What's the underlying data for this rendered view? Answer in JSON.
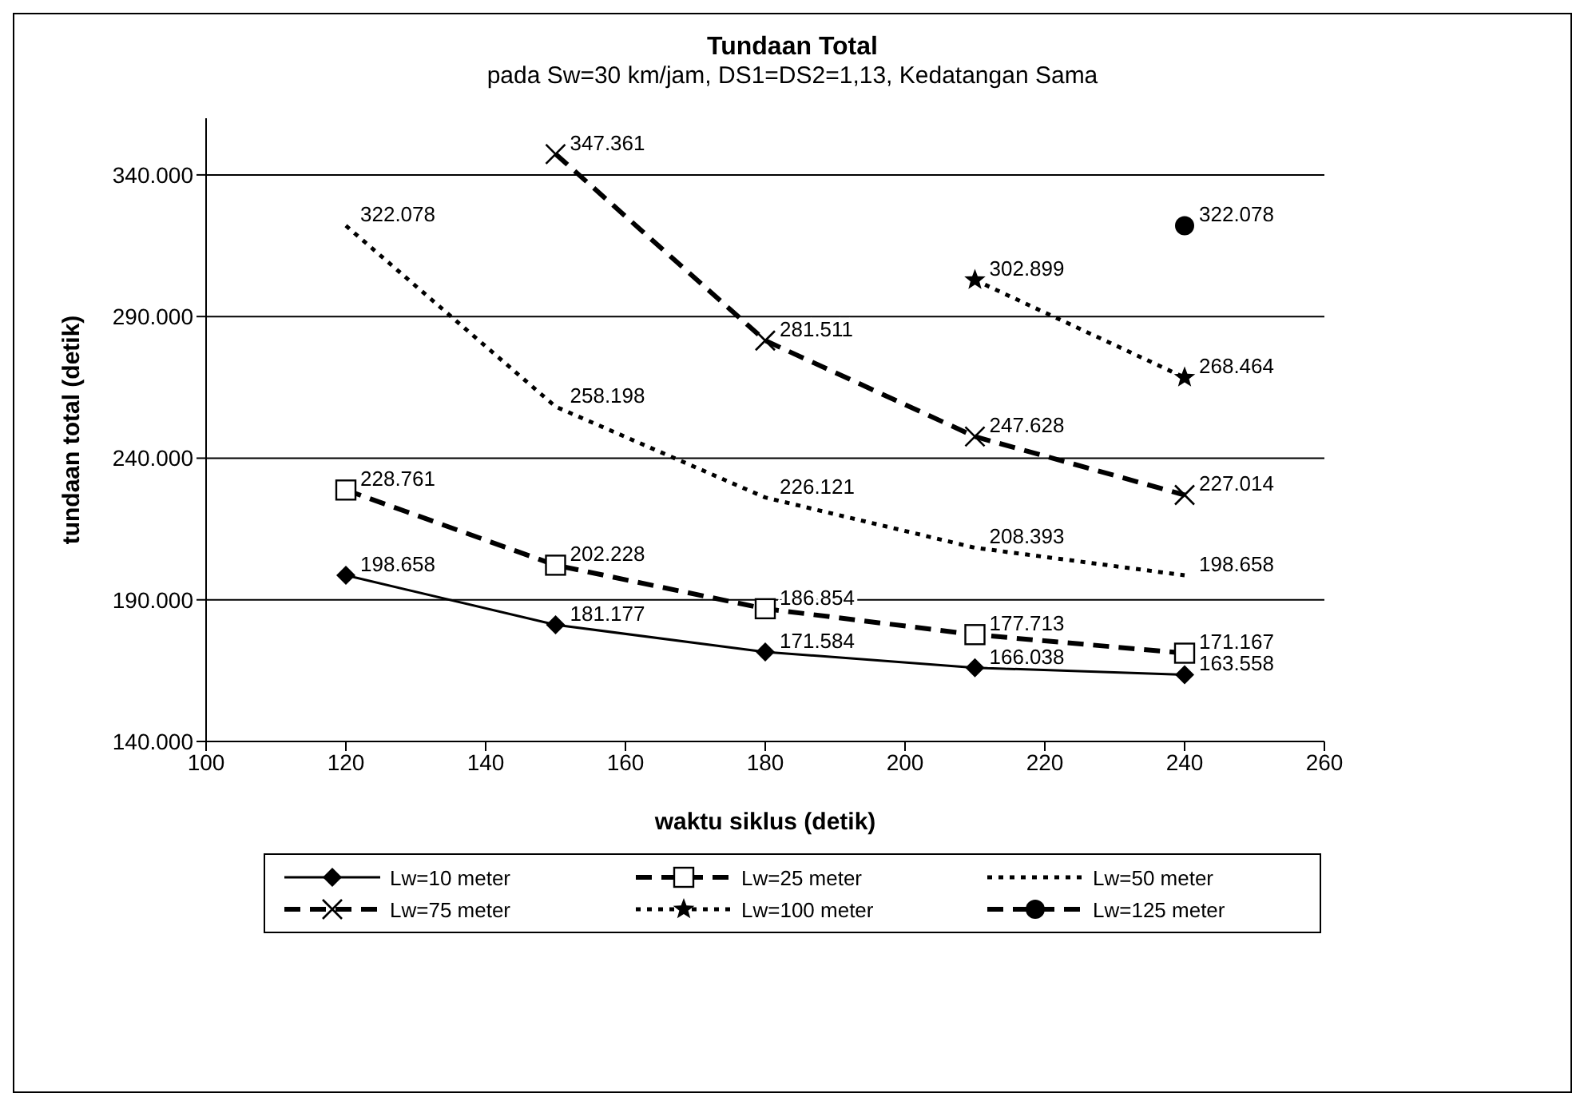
{
  "chart_data": {
    "type": "line",
    "title": "Tundaan Total",
    "subtitle": "pada Sw=30 km/jam, DS1=DS2=1,13, Kedatangan Sama",
    "xlabel": "waktu siklus (detik)",
    "ylabel": "tundaan total (detik)",
    "xlim": [
      100,
      260
    ],
    "xticks": [
      100,
      120,
      140,
      160,
      180,
      200,
      220,
      240,
      260
    ],
    "ylim": [
      140000,
      360000
    ],
    "yticks": [
      {
        "value": 140000,
        "label": "140.000"
      },
      {
        "value": 190000,
        "label": "190.000"
      },
      {
        "value": 240000,
        "label": "240.000"
      },
      {
        "value": 290000,
        "label": "290.000"
      },
      {
        "value": 340000,
        "label": "340.000"
      }
    ],
    "grid": "y",
    "legend": "bottom",
    "series": [
      {
        "name": "Lw=10 meter",
        "color": "#000000",
        "marker": "diamond",
        "line_style": "solid",
        "x": [
          120,
          150,
          180,
          210,
          240
        ],
        "values": [
          198658,
          181177,
          171584,
          166038,
          163558
        ],
        "value_labels": [
          "198.658",
          "181.177",
          "171.584",
          "166.038",
          "163.558"
        ]
      },
      {
        "name": "Lw=25 meter",
        "color": "#000000",
        "marker": "square",
        "line_style": "dashed",
        "x": [
          120,
          150,
          180,
          210,
          240
        ],
        "values": [
          228761,
          202228,
          186854,
          177713,
          171167
        ],
        "value_labels": [
          "228.761",
          "202.228",
          "186.854",
          "177.713",
          "171.167"
        ]
      },
      {
        "name": "Lw=50 meter",
        "color": "#000000",
        "marker": "none",
        "line_style": "dotted",
        "x": [
          120,
          150,
          180,
          210,
          240
        ],
        "values": [
          322078,
          258198,
          226121,
          208393,
          198658
        ],
        "value_labels": [
          "322.078",
          "258.198",
          "226.121",
          "208.393",
          "198.658"
        ]
      },
      {
        "name": "Lw=75 meter",
        "color": "#000000",
        "marker": "cross",
        "line_style": "dashed",
        "x": [
          150,
          180,
          210,
          240
        ],
        "values": [
          347361,
          281511,
          247628,
          227014
        ],
        "value_labels": [
          "347.361",
          "281.511",
          "247.628",
          "227.014"
        ]
      },
      {
        "name": "Lw=100 meter",
        "color": "#000000",
        "marker": "star",
        "line_style": "dotted",
        "x": [
          210,
          240
        ],
        "values": [
          302899,
          268464
        ],
        "value_labels": [
          "302.899",
          "268.464"
        ]
      },
      {
        "name": "Lw=125 meter",
        "color": "#000000",
        "marker": "circle",
        "line_style": "dashed",
        "x": [
          240
        ],
        "values": [
          322078
        ],
        "value_labels": [
          "322.078"
        ]
      }
    ]
  }
}
